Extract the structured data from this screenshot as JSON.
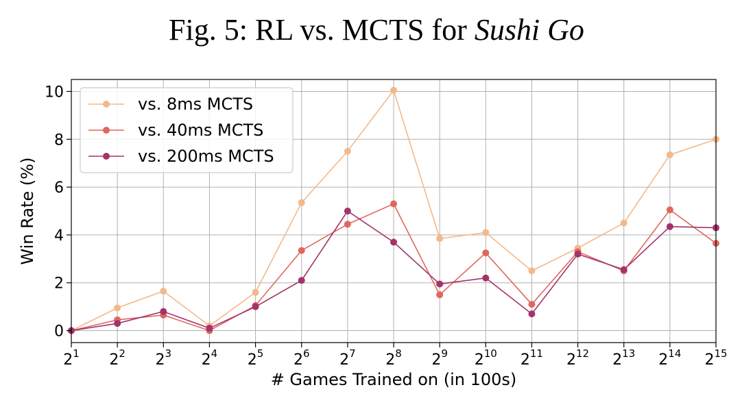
{
  "figure_title": {
    "prefix": "Fig. 5: RL vs. MCTS for ",
    "game": "Sushi Go"
  },
  "chart_data": {
    "type": "line",
    "xlabel": "# Games Trained on (in 100s)",
    "ylabel": "Win Rate (%)",
    "x_tick_base": "2",
    "x_exponents": [
      "1",
      "2",
      "3",
      "4",
      "5",
      "6",
      "7",
      "8",
      "9",
      "10",
      "11",
      "12",
      "13",
      "14",
      "15"
    ],
    "yticks": [
      0,
      2,
      4,
      6,
      8,
      10
    ],
    "ylim": [
      -0.5,
      10.5
    ],
    "grid": true,
    "legend_position": "top-left",
    "series": [
      {
        "name": "vs. 8ms MCTS",
        "color": "#f3b98a",
        "values": [
          0.0,
          0.95,
          1.65,
          0.2,
          1.6,
          5.35,
          7.5,
          10.05,
          3.85,
          4.1,
          2.5,
          3.45,
          4.5,
          7.35,
          8.0
        ]
      },
      {
        "name": "vs. 40ms MCTS",
        "color": "#e0675d",
        "values": [
          0.0,
          0.45,
          0.65,
          0.0,
          1.05,
          3.35,
          4.45,
          5.3,
          1.5,
          3.25,
          1.1,
          3.3,
          2.5,
          5.05,
          3.65
        ]
      },
      {
        "name": "vs. 200ms MCTS",
        "color": "#a3336a",
        "values": [
          0.0,
          0.3,
          0.8,
          0.1,
          1.0,
          2.1,
          5.0,
          3.7,
          1.95,
          2.2,
          0.7,
          3.2,
          2.55,
          4.35,
          4.3
        ]
      }
    ]
  }
}
